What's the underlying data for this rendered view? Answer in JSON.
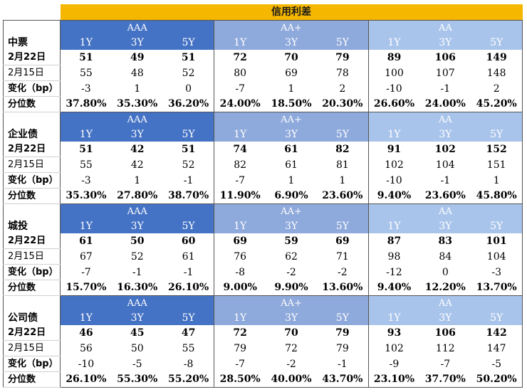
{
  "title": "信用利差",
  "sections": [
    {
      "name": "中票",
      "groups": [
        "AAA",
        "AA+",
        "AA"
      ],
      "tenors": [
        "1Y",
        "3Y",
        "5Y",
        "1Y",
        "3Y",
        "5Y",
        "1Y",
        "3Y",
        "5Y"
      ],
      "rows": [
        {
          "label": "2月22日",
          "values": [
            "51",
            "49",
            "51",
            "72",
            "70",
            "79",
            "89",
            "106",
            "149"
          ]
        },
        {
          "label": "2月15日",
          "values": [
            "55",
            "48",
            "52",
            "80",
            "69",
            "78",
            "100",
            "107",
            "148"
          ]
        },
        {
          "label": "变化（bp）",
          "values": [
            "-3",
            "1",
            "0",
            "-7",
            "1",
            "2",
            "-10",
            "-1",
            "2"
          ]
        },
        {
          "label": "分位数",
          "values": [
            "37.80%",
            "35.30%",
            "36.20%",
            "24.00%",
            "18.50%",
            "20.30%",
            "26.60%",
            "24.00%",
            "45.20%"
          ]
        }
      ]
    },
    {
      "name": "企业债",
      "groups": [
        "AAA",
        "AA+",
        "AA"
      ],
      "tenors": [
        "1Y",
        "3Y",
        "5Y",
        "1Y",
        "3Y",
        "5Y",
        "1Y",
        "3Y",
        "5Y"
      ],
      "rows": [
        {
          "label": "2月22日",
          "values": [
            "51",
            "42",
            "51",
            "74",
            "61",
            "82",
            "91",
            "102",
            "152"
          ]
        },
        {
          "label": "2月15日",
          "values": [
            "55",
            "42",
            "52",
            "82",
            "61",
            "81",
            "102",
            "104",
            "151"
          ]
        },
        {
          "label": "变化（bp）",
          "values": [
            "-3",
            "1",
            "-1",
            "-7",
            "1",
            "1",
            "-10",
            "-1",
            "1"
          ]
        },
        {
          "label": "分位数",
          "values": [
            "35.30%",
            "27.80%",
            "38.70%",
            "11.90%",
            "6.90%",
            "23.60%",
            "9.40%",
            "23.60%",
            "45.80%"
          ]
        }
      ]
    },
    {
      "name": "城投",
      "groups": [
        "AAA",
        "AA+",
        "AA"
      ],
      "tenors": [
        "1Y",
        "3Y",
        "5Y",
        "1Y",
        "3Y",
        "5Y",
        "1Y",
        "3Y",
        "5Y"
      ],
      "rows": [
        {
          "label": "2月22日",
          "values": [
            "61",
            "50",
            "60",
            "69",
            "59",
            "69",
            "87",
            "83",
            "101"
          ]
        },
        {
          "label": "2月15日",
          "values": [
            "67",
            "52",
            "61",
            "76",
            "62",
            "71",
            "98",
            "84",
            "104"
          ]
        },
        {
          "label": "变化（bp）",
          "values": [
            "-7",
            "-1",
            "-1",
            "-8",
            "-2",
            "-2",
            "-12",
            "0",
            "-3"
          ]
        },
        {
          "label": "分位数",
          "values": [
            "15.70%",
            "16.30%",
            "26.10%",
            "9.00%",
            "9.90%",
            "13.60%",
            "9.40%",
            "12.20%",
            "13.70%"
          ]
        }
      ]
    },
    {
      "name": "公司债",
      "groups": [
        "AAA",
        "AA+",
        "AA"
      ],
      "tenors": [
        "1Y",
        "3Y",
        "5Y",
        "1Y",
        "3Y",
        "5Y",
        "1Y",
        "3Y",
        "5Y"
      ],
      "rows": [
        {
          "label": "2月22日",
          "values": [
            "46",
            "45",
            "47",
            "72",
            "70",
            "79",
            "93",
            "106",
            "142"
          ]
        },
        {
          "label": "2月15日",
          "values": [
            "56",
            "50",
            "55",
            "79",
            "72",
            "79",
            "102",
            "112",
            "147"
          ]
        },
        {
          "label": "变化（bp）",
          "values": [
            "-10",
            "-5",
            "-8",
            "-7",
            "-2",
            "-1",
            "-9",
            "-7",
            "-5"
          ]
        },
        {
          "label": "分位数",
          "values": [
            "26.10%",
            "55.30%",
            "55.20%",
            "28.50%",
            "40.00%",
            "43.70%",
            "23.10%",
            "37.70%",
            "50.20%"
          ]
        }
      ]
    }
  ],
  "colors": {
    "title_bg": "#f5b700",
    "aaa_header": "#4472c4",
    "aa_plus_header": "#8ea9db",
    "aa_header": "#a9c4eb"
  }
}
